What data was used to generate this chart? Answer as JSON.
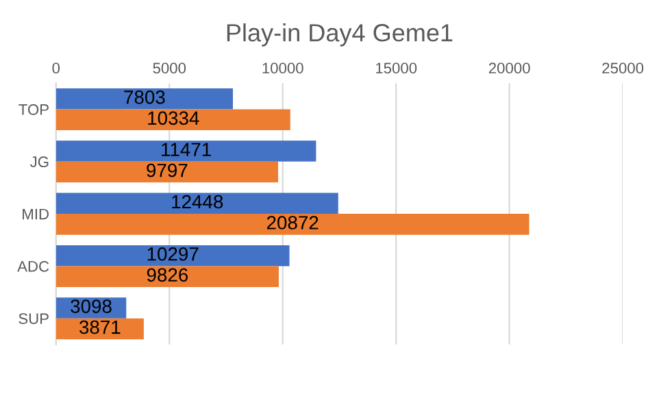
{
  "chart_data": {
    "type": "bar",
    "orientation": "horizontal",
    "title": "Play-in Day4 Geme1",
    "categories": [
      "TOP",
      "JG",
      "MID",
      "ADC",
      "SUP"
    ],
    "series": [
      {
        "color": "#4472c4",
        "values": [
          7803,
          11471,
          12448,
          10297,
          3098
        ]
      },
      {
        "color": "#ed7d31",
        "values": [
          10334,
          9797,
          20872,
          9826,
          3871
        ]
      }
    ],
    "xlim": [
      0,
      25000
    ],
    "xticks": [
      0,
      5000,
      10000,
      15000,
      20000,
      25000
    ],
    "grid": "x",
    "data_labels": true
  }
}
